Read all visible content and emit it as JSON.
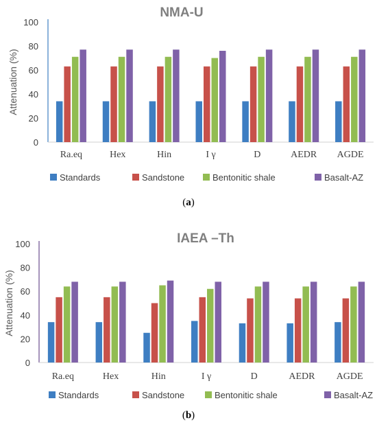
{
  "colors": {
    "Standards": "#3e7ec2",
    "Sandstone": "#c7514a",
    "Bentonitic shale": "#92bc52",
    "Basalt-AZ": "#7f62a8"
  },
  "labels": {
    "a": "(a)",
    "b": "(b)"
  },
  "chart_data": [
    {
      "type": "bar",
      "title": "NMA-U",
      "ylabel": "Attenuation (%)",
      "xlabel": "",
      "ylim": [
        0,
        100
      ],
      "yticks": [
        0,
        20,
        40,
        60,
        80,
        100
      ],
      "categories": [
        "Ra.eq",
        "Hex",
        "Hin",
        "I γ",
        "D",
        "AEDR",
        "AGDE"
      ],
      "series": [
        {
          "name": "Standards",
          "values": [
            34,
            34,
            34,
            34,
            34,
            34,
            34
          ]
        },
        {
          "name": "Sandstone",
          "values": [
            63,
            63,
            63,
            63,
            63,
            63,
            63
          ]
        },
        {
          "name": "Bentonitic  shale",
          "values": [
            71,
            71,
            71,
            70,
            71,
            71,
            71
          ]
        },
        {
          "name": "Basalt-AZ",
          "values": [
            77,
            77,
            77,
            76,
            77,
            77,
            77
          ]
        }
      ],
      "legend": "bottom",
      "grid": false
    },
    {
      "type": "bar",
      "title": "IAEA –Th",
      "ylabel": "Attenuation (%)",
      "xlabel": "",
      "ylim": [
        0,
        100
      ],
      "yticks": [
        0,
        20,
        40,
        60,
        80,
        100
      ],
      "categories": [
        "Ra.eq",
        "Hex",
        "Hin",
        "I γ",
        "D",
        "AEDR",
        "AGDE"
      ],
      "series": [
        {
          "name": "Standards",
          "values": [
            34,
            34,
            25,
            35,
            33,
            33,
            34
          ]
        },
        {
          "name": "Sandstone",
          "values": [
            55,
            55,
            50,
            55,
            54,
            54,
            54
          ]
        },
        {
          "name": "Bentonitic  shale",
          "values": [
            64,
            64,
            65,
            62,
            64,
            64,
            64
          ]
        },
        {
          "name": "Basalt-AZ",
          "values": [
            68,
            68,
            69,
            68,
            68,
            68,
            68
          ]
        }
      ],
      "legend": "bottom",
      "grid": false
    }
  ]
}
